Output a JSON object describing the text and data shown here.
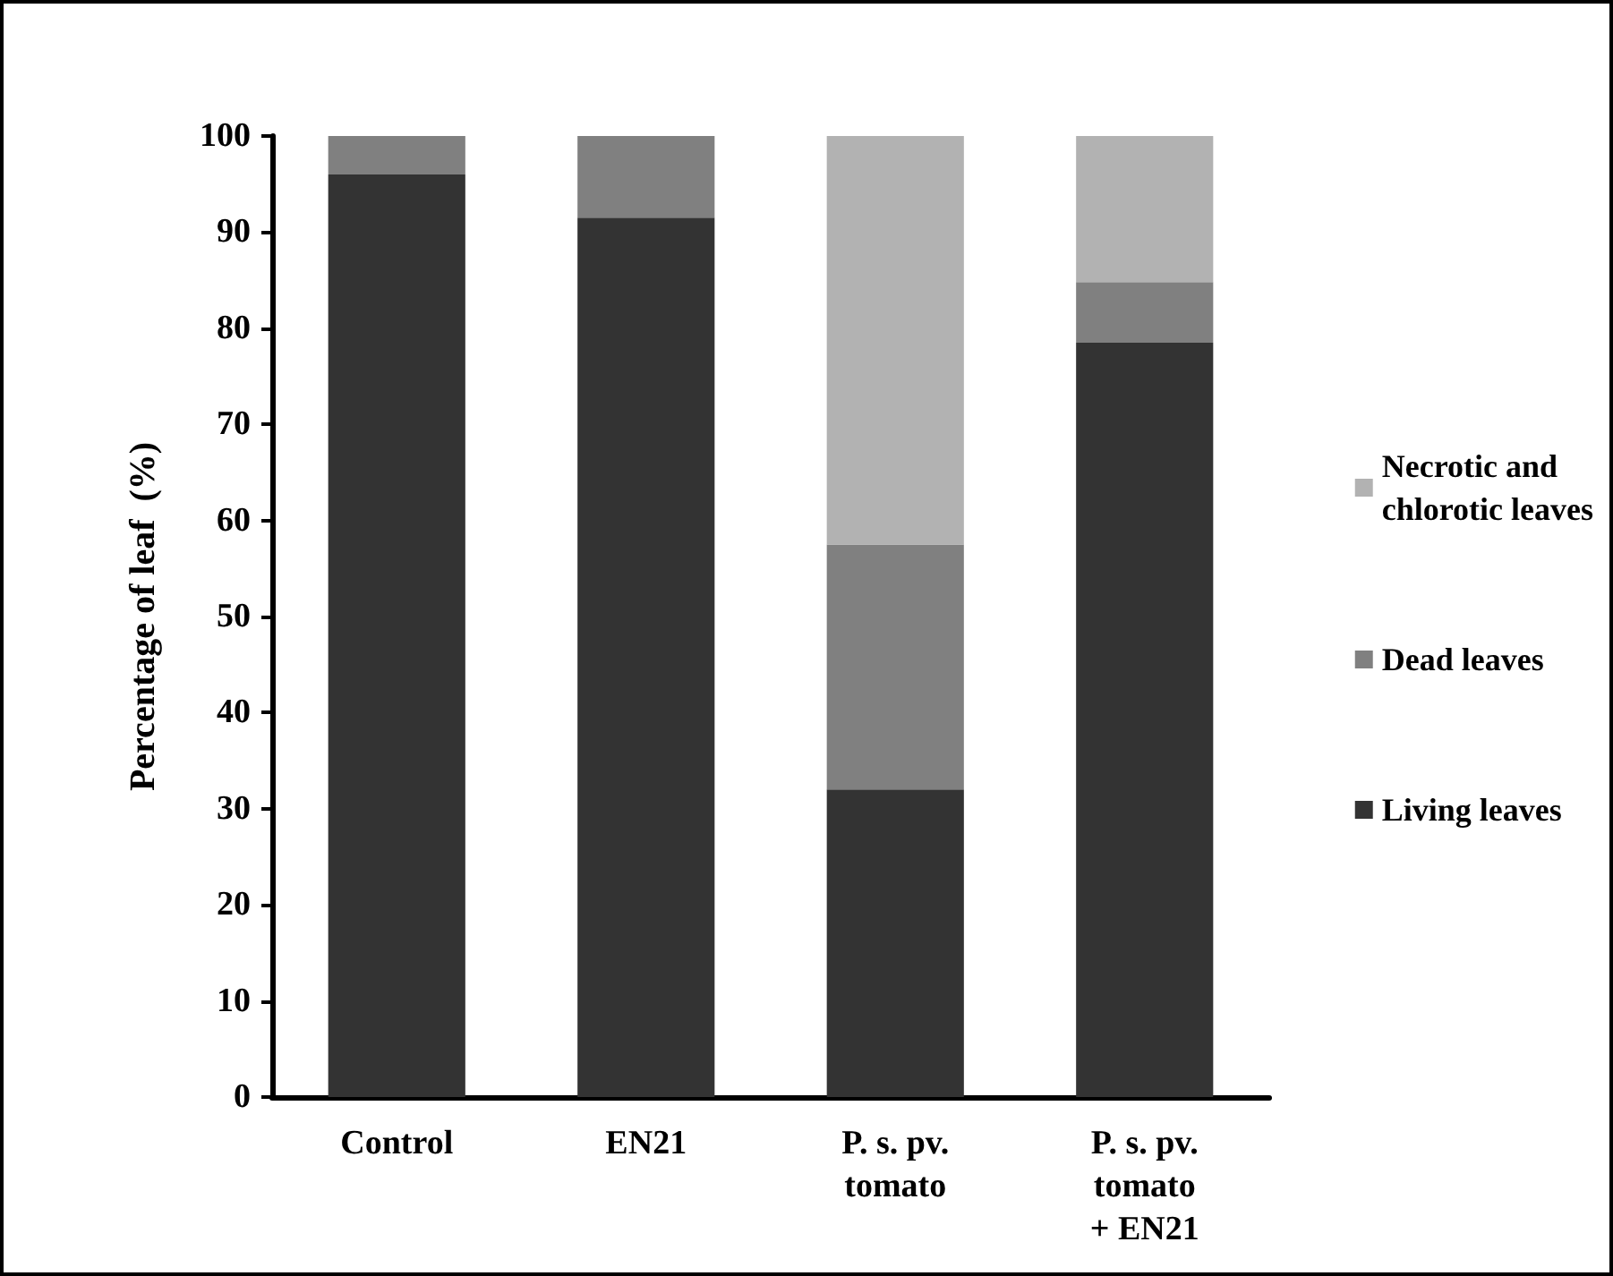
{
  "chart_data": {
    "type": "bar",
    "stacked": true,
    "ylabel": "Percentage of leaf  (%)",
    "categories": [
      "Control",
      "EN21",
      "P. s. pv.\ntomato",
      "P. s. pv.\ntomato\n+ EN21"
    ],
    "series": [
      {
        "name": "Living leaves",
        "color": "#333333",
        "values": [
          96,
          91.5,
          32,
          78.5
        ]
      },
      {
        "name": "Dead leaves",
        "color": "#808080",
        "values": [
          4,
          8.5,
          25.5,
          6.3
        ]
      },
      {
        "name": "Necrotic and\nchlorotic leaves",
        "color": "#b2b2b2",
        "values": [
          0,
          0,
          42.5,
          15.2
        ]
      }
    ],
    "ylim": [
      0,
      100
    ],
    "yticks": [
      0,
      10,
      20,
      30,
      40,
      50,
      60,
      70,
      80,
      90,
      100
    ],
    "grid": false,
    "legend": "right"
  }
}
